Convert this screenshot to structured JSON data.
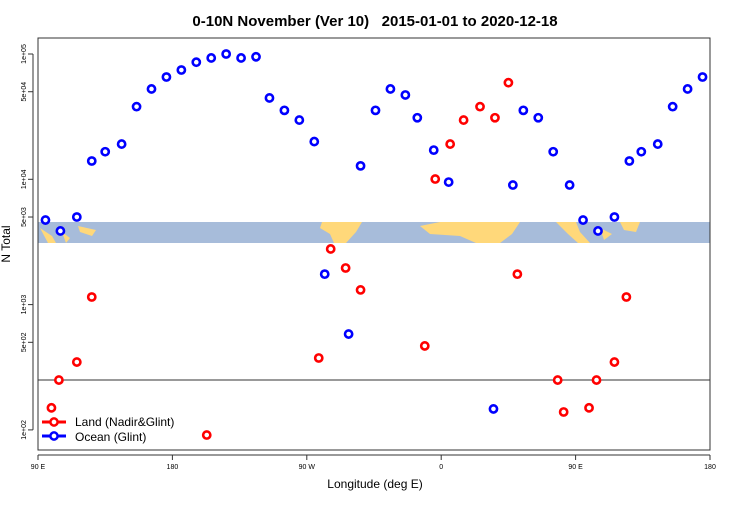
{
  "chart_data": {
    "type": "scatter",
    "title": "0-10N November (Ver 10)   2015-01-01 to 2020-12-18",
    "xlabel": "Longitude (deg E)",
    "ylabel": "N Total",
    "xlim": [
      90,
      540
    ],
    "ylim": [
      80,
      125000
    ],
    "yscale": "log",
    "x_ticks": [
      {
        "value": 90,
        "label": "90 E"
      },
      {
        "value": 180,
        "label": "180"
      },
      {
        "value": 270,
        "label": "90 W"
      },
      {
        "value": 360,
        "label": "0"
      },
      {
        "value": 450,
        "label": "90 E"
      },
      {
        "value": 540,
        "label": "180"
      }
    ],
    "y_ticks": [
      {
        "value": 100,
        "label": "1e+02"
      },
      {
        "value": 500,
        "label": "5e+02"
      },
      {
        "value": 1000,
        "label": "1e+03"
      },
      {
        "value": 5000,
        "label": "5e+03"
      },
      {
        "value": 10000,
        "label": "1e+04"
      },
      {
        "value": 50000,
        "label": "5e+04"
      },
      {
        "value": 100000,
        "label": "1e+05"
      }
    ],
    "reference_line": 250,
    "legend_position": "bottom-left",
    "series": [
      {
        "name": "Land (Nadir&Glint)",
        "color": "#ff0000",
        "points": [
          [
            99,
            150
          ],
          [
            104,
            250
          ],
          [
            116,
            348
          ],
          [
            126,
            1150
          ],
          [
            203,
            91
          ],
          [
            278,
            375
          ],
          [
            286,
            2780
          ],
          [
            296,
            1960
          ],
          [
            306,
            1310
          ],
          [
            349,
            468
          ],
          [
            356,
            10050
          ],
          [
            366,
            19100
          ],
          [
            375,
            29700
          ],
          [
            386,
            38000
          ],
          [
            396,
            31000
          ],
          [
            405,
            59000
          ],
          [
            411,
            1750
          ],
          [
            438,
            250
          ],
          [
            442,
            139
          ],
          [
            459,
            150
          ],
          [
            464,
            250
          ],
          [
            476,
            348
          ],
          [
            484,
            1150
          ]
        ]
      },
      {
        "name": "Ocean (Glint)",
        "color": "#0000ff",
        "points": [
          [
            95,
            4730
          ],
          [
            105,
            3870
          ],
          [
            116,
            5000
          ],
          [
            126,
            14000
          ],
          [
            135,
            16600
          ],
          [
            146,
            19100
          ],
          [
            156,
            38000
          ],
          [
            166,
            52600
          ],
          [
            176,
            65500
          ],
          [
            186,
            74500
          ],
          [
            196,
            86000
          ],
          [
            206,
            93000
          ],
          [
            216,
            100000
          ],
          [
            226,
            93000
          ],
          [
            236,
            95000
          ],
          [
            245,
            44600
          ],
          [
            255,
            35500
          ],
          [
            265,
            29700
          ],
          [
            275,
            20000
          ],
          [
            282,
            1750
          ],
          [
            298,
            582
          ],
          [
            306,
            12800
          ],
          [
            316,
            35500
          ],
          [
            326,
            52600
          ],
          [
            336,
            47100
          ],
          [
            344,
            31000
          ],
          [
            355,
            17100
          ],
          [
            365,
            9500
          ],
          [
            395,
            147
          ],
          [
            408,
            9000
          ],
          [
            415,
            35500
          ],
          [
            425,
            31000
          ],
          [
            435,
            16600
          ],
          [
            446,
            9000
          ],
          [
            455,
            4730
          ],
          [
            465,
            3870
          ],
          [
            476,
            5000
          ],
          [
            486,
            14000
          ],
          [
            494,
            16600
          ],
          [
            505,
            19100
          ],
          [
            515,
            38000
          ],
          [
            525,
            52600
          ],
          [
            535,
            65500
          ]
        ]
      }
    ]
  }
}
